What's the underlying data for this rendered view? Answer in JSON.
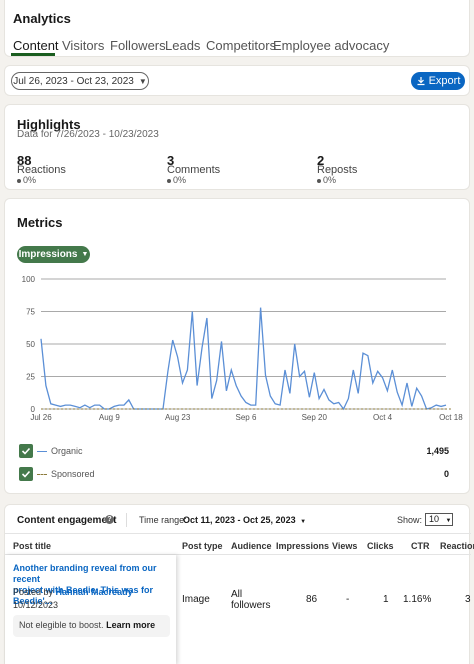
{
  "header": {
    "title": "Analytics",
    "tabs": [
      "Content",
      "Visitors",
      "Followers",
      "Leads",
      "Competitors",
      "Employee advocacy"
    ],
    "active_tab": 0
  },
  "filter": {
    "date_range": "Jul 26, 2023 - Oct 23, 2023",
    "export_label": "Export"
  },
  "highlights": {
    "title": "Highlights",
    "subtitle": "Data for 7/26/2023 - 10/23/2023",
    "metrics": [
      {
        "value": "88",
        "label": "Reactions",
        "change": "0%"
      },
      {
        "value": "3",
        "label": "Comments",
        "change": "0%"
      },
      {
        "value": "2",
        "label": "Reposts",
        "change": "0%"
      }
    ]
  },
  "metrics": {
    "title": "Metrics",
    "dropdown_label": "Impressions",
    "legend": [
      {
        "name": "Organic",
        "total": "1,495",
        "checked": true
      },
      {
        "name": "Sponsored",
        "total": "0",
        "checked": true
      }
    ]
  },
  "chart_data": {
    "type": "line",
    "ylim": [
      0,
      100
    ],
    "yticks": [
      "100",
      "75",
      "50",
      "25",
      "0"
    ],
    "xticks": [
      "Jul 26",
      "Aug 9",
      "Aug 23",
      "Sep 6",
      "Sep 20",
      "Oct 4",
      "Oct 18"
    ],
    "series": [
      {
        "name": "Organic",
        "color": "#5b8fd6",
        "values": [
          54,
          18,
          4,
          3,
          2,
          3,
          3,
          2,
          1,
          3,
          1,
          3,
          3,
          0,
          0,
          2,
          3,
          3,
          7,
          0,
          0,
          0,
          0,
          0,
          0,
          0,
          29,
          53,
          40,
          20,
          30,
          75,
          18,
          47,
          70,
          8,
          22,
          52,
          14,
          30,
          18,
          10,
          5,
          3,
          3,
          78,
          26,
          10,
          4,
          3,
          30,
          12,
          50,
          25,
          29,
          9,
          28,
          8,
          15,
          7,
          4,
          5,
          0,
          8,
          30,
          12,
          43,
          41,
          20,
          29,
          24,
          14,
          30,
          13,
          3,
          20,
          2,
          16,
          10,
          0,
          1,
          3,
          2,
          3
        ]
      },
      {
        "name": "Sponsored",
        "color": "#8b7a3a",
        "dashed": true,
        "values": [
          0,
          0,
          0,
          0,
          0,
          0,
          0,
          0,
          0,
          0,
          0,
          0,
          0,
          0,
          0,
          0,
          0,
          0,
          0,
          0,
          0,
          0,
          0,
          0,
          0,
          0,
          0,
          0,
          0,
          0,
          0,
          0,
          0,
          0,
          0,
          0,
          0,
          0,
          0,
          0,
          0,
          0,
          0,
          0,
          0,
          0,
          0,
          0,
          0,
          0,
          0,
          0,
          0,
          0,
          0,
          0,
          0,
          0,
          0,
          0,
          0,
          0,
          0,
          0,
          0,
          0,
          0,
          0,
          0,
          0,
          0,
          0,
          0,
          0,
          0,
          0,
          0,
          0,
          0,
          0,
          0,
          0,
          0,
          0,
          0
        ]
      }
    ]
  },
  "engagement": {
    "title": "Content engagement",
    "time_range_label": "Time range:",
    "time_range_value": "Oct 11, 2023 - Oct 25, 2023",
    "show_label": "Show:",
    "show_value": "10",
    "columns": [
      "Post title",
      "Post type",
      "Audience",
      "Impressions",
      "Views",
      "Clicks",
      "CTR",
      "Reactions"
    ],
    "row": {
      "title_line1": "Another branding reveal from our recent",
      "title_line2": "project with Beedie. This was for Beedie'...",
      "posted_by_prefix": "Posted by",
      "posted_by": "Hannah Macready",
      "date": "10/12/2023",
      "boost_note": "Not elegible to boost.",
      "boost_link": "Learn more",
      "post_type": "Image",
      "audience_line1": "All",
      "audience_line2": "followers",
      "impressions": "86",
      "views": "-",
      "clicks": "1",
      "ctr": "1.16%",
      "reactions": "3"
    }
  }
}
